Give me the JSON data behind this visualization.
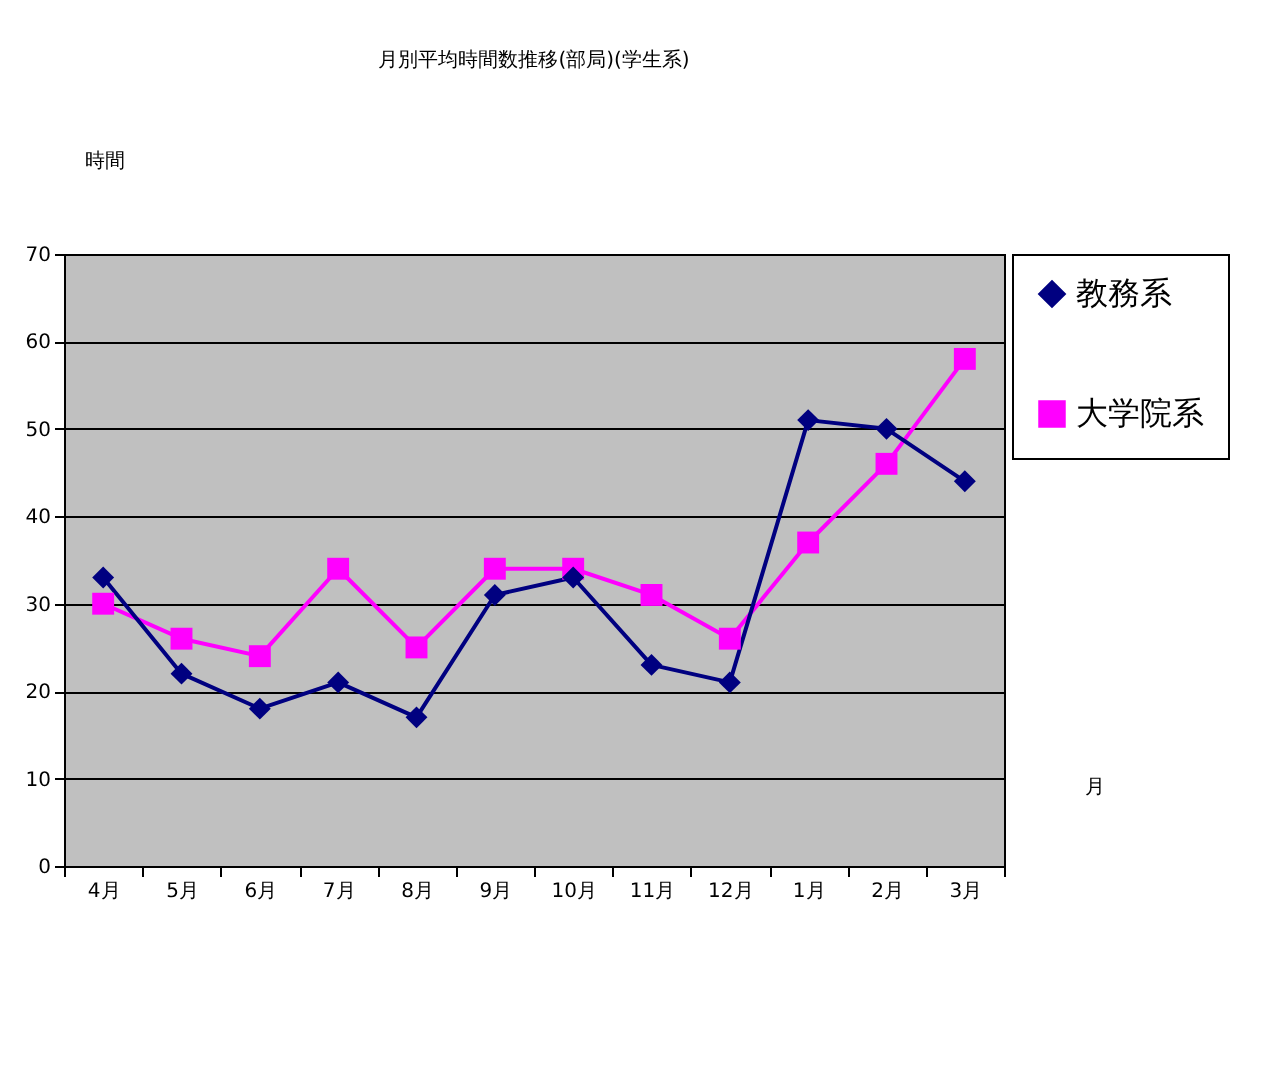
{
  "chart_data": {
    "type": "line",
    "title": "月別平均時間数推移(部局)(学生系)",
    "ylabel": "時間",
    "xlabel": "月",
    "categories": [
      "4月",
      "5月",
      "6月",
      "7月",
      "8月",
      "9月",
      "10月",
      "11月",
      "12月",
      "1月",
      "2月",
      "3月"
    ],
    "series": [
      {
        "name": "教務系",
        "color": "#000080",
        "marker": "diamond",
        "values": [
          33,
          22,
          18,
          21,
          17,
          31,
          33,
          23,
          21,
          51,
          50,
          44
        ]
      },
      {
        "name": "大学院系",
        "color": "#ff00ff",
        "marker": "square",
        "values": [
          30,
          26,
          24,
          34,
          25,
          34,
          34,
          31,
          26,
          37,
          46,
          58
        ]
      }
    ],
    "ylim": [
      0,
      70
    ],
    "yticks": [
      0,
      10,
      20,
      30,
      40,
      50,
      60,
      70
    ],
    "grid": "y",
    "legend": "right",
    "line_style": "solid"
  }
}
